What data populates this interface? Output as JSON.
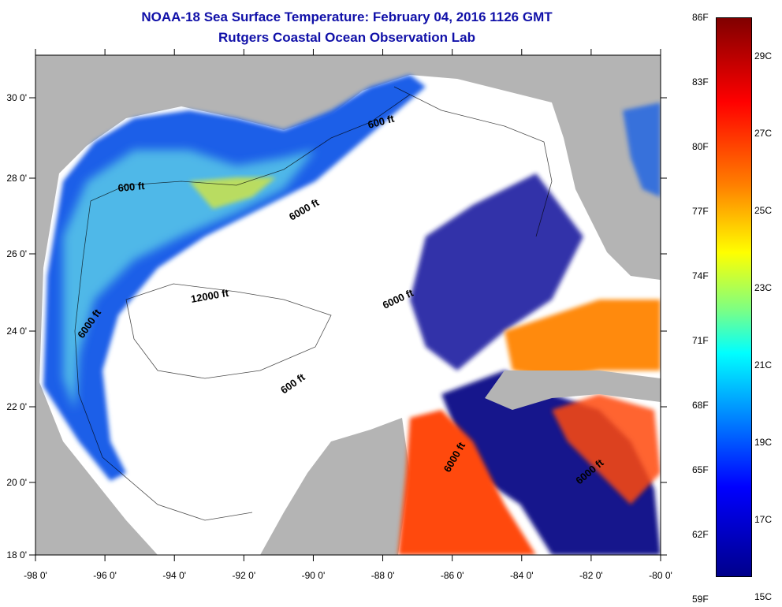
{
  "title": "NOAA-18 Sea Surface Temperature:  February 04, 2016 1126 GMT",
  "subtitle": "Rutgers Coastal Ocean Observation Lab",
  "map": {
    "x_ticks": [
      "-98 0'",
      "-96 0'",
      "-94 0'",
      "-92 0'",
      "-90 0'",
      "-88 0'",
      "-86 0'",
      "-84 0'",
      "-82 0'",
      "-80 0'"
    ],
    "y_ticks": [
      "30 0'",
      "28 0'",
      "26 0'",
      "24 0'",
      "22 0'",
      "20 0'",
      "18 0'"
    ],
    "contour_labels": [
      "600 ft",
      "600 ft",
      "6000 ft",
      "12000 ft",
      "6000 ft",
      "6000 ft",
      "600 ft",
      "6000 ft",
      "6000 ft"
    ],
    "colors": {
      "land": "#b4b4b4",
      "no_data": "#ffffff",
      "cold": "#0000a0",
      "warm": "#ff5000"
    }
  },
  "colorbar": {
    "fahrenheit": [
      "86F",
      "83F",
      "80F",
      "77F",
      "74F",
      "71F",
      "68F",
      "65F",
      "62F",
      "59F"
    ],
    "celsius": [
      "29C",
      "27C",
      "25C",
      "23C",
      "21C",
      "19C",
      "17C",
      "15C"
    ]
  }
}
